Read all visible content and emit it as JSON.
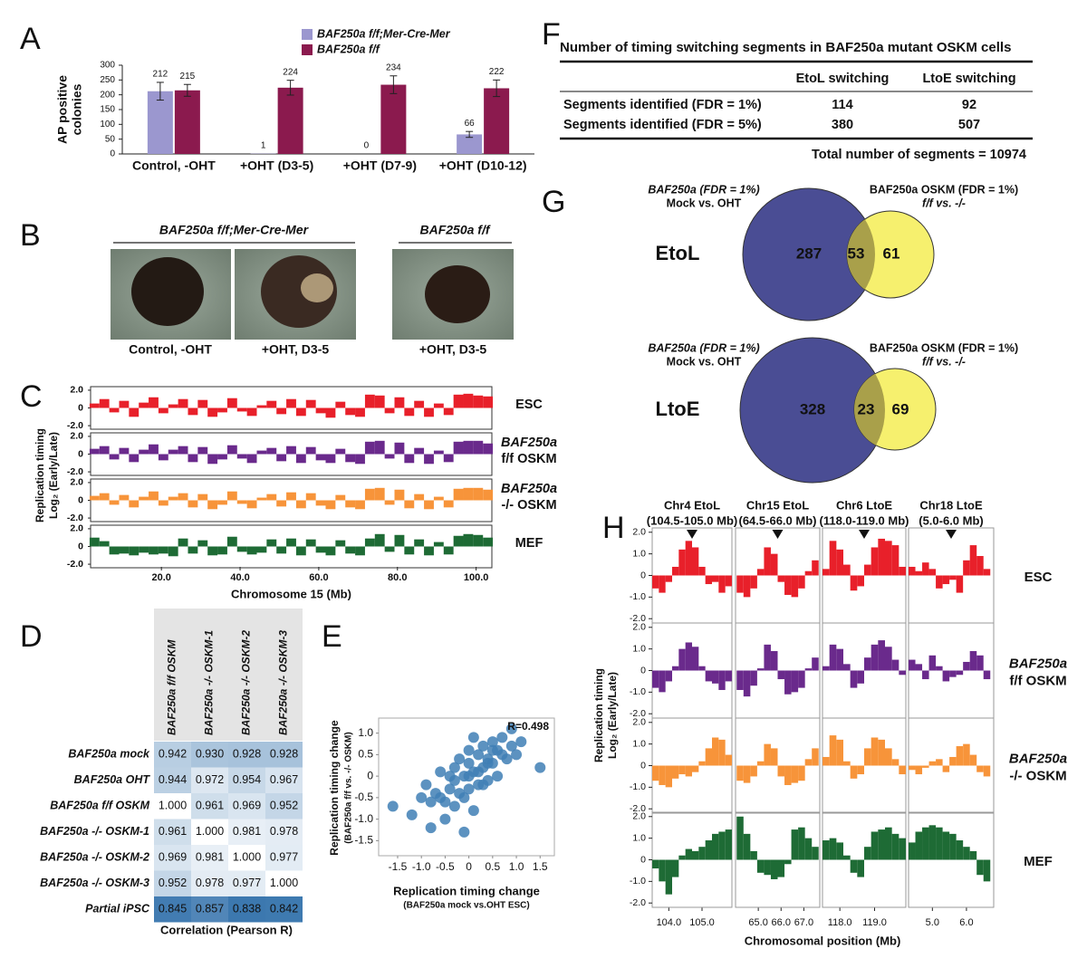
{
  "panel_labels": [
    "A",
    "B",
    "C",
    "D",
    "E",
    "F",
    "G",
    "H"
  ],
  "chart_data": [
    {
      "type": "bar",
      "ylabel": [
        "AP positive",
        "colonies"
      ],
      "categories": [
        "Control, -OHT",
        "+OHT (D3-5)",
        "+OHT (D7-9)",
        "+OHT (D10-12)"
      ],
      "series": [
        {
          "name": "BAF250a f/f;Mer-Cre-Mer",
          "color": "#9b97cf",
          "values": [
            212,
            1,
            0,
            66
          ],
          "errors": [
            30,
            0,
            0,
            10
          ]
        },
        {
          "name": "BAF250a f/f",
          "color": "#8b1a4e",
          "values": [
            215,
            224,
            234,
            222
          ],
          "errors": [
            20,
            25,
            30,
            28
          ]
        }
      ],
      "ylim": [
        0,
        300
      ],
      "yticks": [
        0,
        50,
        100,
        150,
        200,
        250,
        300
      ]
    },
    {
      "type": "track",
      "ylabel": [
        "Replication timing",
        "Log₂ (Early/Late)"
      ],
      "xlabel": "Chromosome 15 (Mb)",
      "xlim": [
        2,
        104
      ],
      "xticks": [
        {
          "value": 20,
          "label": "20.0"
        },
        {
          "value": 40,
          "label": "40.0"
        },
        {
          "value": 60,
          "label": "60.0"
        },
        {
          "value": 80,
          "label": "80.0"
        },
        {
          "value": 100,
          "label": "100.0"
        }
      ],
      "ylim": [
        -2.4,
        2.4
      ],
      "yticks": [
        {
          "value": 2,
          "label": "2.0"
        },
        0,
        {
          "value": -2,
          "label": "-2.0"
        }
      ],
      "x": [
        3,
        5.5,
        8,
        10.5,
        13,
        15.5,
        18,
        20.5,
        23,
        25.5,
        28,
        30.5,
        33,
        35.5,
        38,
        40.5,
        43,
        45.5,
        48,
        50.5,
        53,
        55.5,
        58,
        60.5,
        63,
        65.5,
        68,
        70.5,
        73,
        75.5,
        78,
        80.5,
        83,
        85.5,
        88,
        90.5,
        93,
        95.5,
        98,
        100.5,
        103
      ],
      "series": [
        {
          "name": [
            "ESC"
          ],
          "color": "#e8202a",
          "values": [
            0.5,
            1.0,
            -0.5,
            0.8,
            -1.0,
            0.6,
            1.2,
            -0.6,
            0.4,
            1.0,
            -0.8,
            0.9,
            -1.0,
            -0.5,
            1.1,
            -0.4,
            -0.9,
            0.3,
            0.8,
            -0.7,
            1.0,
            -0.9,
            0.9,
            -0.6,
            -1.1,
            0.7,
            -0.8,
            -1.0,
            1.5,
            1.4,
            -0.6,
            1.2,
            -0.9,
            0.8,
            -1.0,
            0.5,
            -0.8,
            1.5,
            1.6,
            1.4,
            1.3
          ]
        },
        {
          "name": [
            "BAF250a",
            "f/f OSKM"
          ],
          "color": "#6a2a8c",
          "values": [
            0.6,
            0.9,
            -0.6,
            0.7,
            -0.9,
            0.5,
            1.1,
            -0.7,
            0.5,
            0.9,
            -0.9,
            0.8,
            -1.1,
            -0.6,
            1.0,
            -0.5,
            -1.0,
            0.4,
            0.7,
            -0.8,
            0.9,
            -1.0,
            0.8,
            -0.7,
            -1.0,
            0.6,
            -0.9,
            -1.1,
            1.4,
            1.5,
            -0.5,
            1.3,
            -1.0,
            0.7,
            -1.1,
            0.4,
            -0.9,
            1.4,
            1.5,
            1.5,
            1.2
          ]
        },
        {
          "name": [
            "BAF250a",
            "-/- OSKM"
          ],
          "color": "#f7943a",
          "values": [
            0.5,
            0.8,
            -0.5,
            0.6,
            -0.8,
            0.4,
            1.0,
            -0.6,
            0.4,
            0.8,
            -0.8,
            0.7,
            -1.0,
            -0.5,
            1.0,
            -0.4,
            -0.9,
            0.3,
            0.7,
            -0.7,
            0.9,
            -0.9,
            0.8,
            -0.6,
            -1.0,
            0.6,
            -0.8,
            -1.0,
            1.3,
            1.4,
            -0.5,
            1.2,
            -0.9,
            0.7,
            -1.0,
            0.4,
            -0.8,
            1.3,
            1.4,
            1.4,
            1.2
          ]
        },
        {
          "name": [
            "MEF"
          ],
          "color": "#1e6b35",
          "values": [
            1.0,
            0.6,
            -0.9,
            -0.8,
            -1.0,
            -0.7,
            -0.9,
            -0.8,
            -1.1,
            0.9,
            -0.8,
            0.7,
            -1.0,
            -0.9,
            1.1,
            -0.6,
            -0.9,
            -0.7,
            0.8,
            -0.8,
            0.9,
            -1.0,
            0.8,
            -0.7,
            -1.0,
            0.7,
            -0.8,
            -1.0,
            0.9,
            1.4,
            -0.6,
            1.3,
            -0.9,
            0.8,
            -1.0,
            0.5,
            -0.9,
            1.2,
            1.4,
            1.3,
            1.0
          ]
        }
      ]
    },
    {
      "type": "scatter",
      "ylabel": [
        "Replication timing change",
        "(BAF250a f/f vs. -/- OSKM)"
      ],
      "xlabel": [
        "Replication timing change",
        "(BAF250a mock vs.OHT ESC)"
      ],
      "annotation": "R=0.498",
      "color": "#3f7fb5",
      "xlim": [
        -1.9,
        1.8
      ],
      "ylim": [
        -1.85,
        1.35
      ],
      "xticks": [
        {
          "value": -1.5,
          "label": "-1.5"
        },
        {
          "value": -1,
          "label": "-1.0"
        },
        {
          "value": -0.5,
          "label": "-0.5"
        },
        0,
        {
          "value": 0.5,
          "label": "0.5"
        },
        {
          "value": 1,
          "label": "1.0"
        },
        {
          "value": 1.5,
          "label": "1.5"
        }
      ],
      "yticks": [
        {
          "value": 1,
          "label": "1.0"
        },
        {
          "value": 0.5,
          "label": "0.5"
        },
        0,
        {
          "value": -0.5,
          "label": "-0.5"
        },
        {
          "value": -1,
          "label": "-1.0"
        },
        {
          "value": -1.5,
          "label": "-1.5"
        }
      ],
      "x": [
        -1.6,
        -1.2,
        -1.0,
        -0.9,
        -0.8,
        -0.7,
        -0.6,
        -0.5,
        -0.5,
        -0.4,
        -0.3,
        -0.3,
        -0.2,
        -0.2,
        -0.1,
        -0.1,
        0,
        0,
        0,
        0.1,
        0.1,
        0.2,
        0.2,
        0.3,
        0.3,
        0.4,
        0.4,
        0.5,
        0.5,
        0.6,
        0.6,
        0.7,
        0.8,
        0.9,
        1.0,
        1.1,
        1.5,
        -0.6,
        -0.3,
        0.0,
        0.2,
        0.4,
        0.7,
        -0.8,
        0.3,
        -0.1,
        0.5,
        0.9,
        -0.4,
        0.1
      ],
      "y": [
        -0.7,
        -0.9,
        -0.5,
        -0.2,
        -1.2,
        -0.4,
        0.1,
        -0.6,
        -1.0,
        -0.3,
        0.2,
        -0.7,
        -0.4,
        0.4,
        0.0,
        -1.3,
        0.3,
        -0.3,
        0.6,
        0.1,
        -0.8,
        0.5,
        -0.2,
        0.2,
        0.7,
        0.4,
        -0.1,
        0.3,
        0.8,
        0.6,
        0.0,
        0.9,
        0.4,
        0.7,
        0.5,
        0.8,
        0.2,
        -0.5,
        -0.1,
        0.0,
        0.1,
        0.3,
        0.5,
        -0.6,
        -0.2,
        -0.5,
        0.6,
        1.1,
        0.0,
        0.9
      ]
    },
    {
      "type": "track-regions",
      "ylabel": [
        "Replication timing",
        "Log₂ (Early/Late)"
      ],
      "xlabel": "Chromosomal position (Mb)",
      "ylim": [
        -2.2,
        2.2
      ],
      "yticks": [
        {
          "value": 2,
          "label": "2.0"
        },
        {
          "value": 1,
          "label": "1.0"
        },
        0,
        {
          "value": -1,
          "label": "-1.0"
        },
        {
          "value": -2,
          "label": "-2.0"
        }
      ],
      "regions": [
        {
          "title": [
            "Chr4 EtoL",
            "(104.5-105.0 Mb)"
          ],
          "xlim": [
            103.5,
            105.9
          ],
          "xticks": [
            {
              "value": 104,
              "label": "104.0"
            },
            {
              "value": 105,
              "label": "105.0"
            }
          ],
          "x": [
            103.6,
            103.8,
            104.0,
            104.2,
            104.4,
            104.6,
            104.8,
            105.0,
            105.2,
            105.4,
            105.6,
            105.8
          ]
        },
        {
          "title": [
            "Chr15 EtoL",
            "(64.5-66.0 Mb)"
          ],
          "xlim": [
            64.0,
            67.7
          ],
          "xticks": [
            {
              "value": 65,
              "label": "65.0"
            },
            {
              "value": 66,
              "label": "66.0"
            },
            {
              "value": 67,
              "label": "67.0"
            }
          ],
          "x": [
            64.2,
            64.5,
            64.8,
            65.1,
            65.4,
            65.7,
            66.0,
            66.3,
            66.6,
            66.9,
            67.2,
            67.5
          ]
        },
        {
          "title": [
            "Chr6 LtoE",
            "(118.0-119.0 Mb)"
          ],
          "xlim": [
            117.5,
            119.9
          ],
          "xticks": [
            {
              "value": 118,
              "label": "118.0"
            },
            {
              "value": 119,
              "label": "119.0"
            }
          ],
          "x": [
            117.6,
            117.8,
            118.0,
            118.2,
            118.4,
            118.6,
            118.8,
            119.0,
            119.2,
            119.4,
            119.6,
            119.8
          ]
        },
        {
          "title": [
            "Chr18 LtoE",
            "(5.0-6.0 Mb)"
          ],
          "xlim": [
            4.3,
            6.8
          ],
          "xticks": [
            {
              "value": 5,
              "label": "5.0"
            },
            {
              "value": 6,
              "label": "6.0"
            }
          ],
          "x": [
            4.4,
            4.6,
            4.8,
            5.0,
            5.2,
            5.4,
            5.6,
            5.8,
            6.0,
            6.2,
            6.4,
            6.6
          ]
        }
      ],
      "series": [
        {
          "name": [
            "ESC"
          ],
          "color": "#e8202a",
          "values": [
            [
              -0.6,
              -0.8,
              -0.3,
              0.4,
              1.2,
              1.6,
              1.3,
              0.4,
              -0.4,
              -0.3,
              -0.8,
              -0.5
            ],
            [
              -0.8,
              -1.0,
              -0.6,
              0.3,
              1.3,
              1.0,
              -0.3,
              -0.9,
              -1.0,
              -0.6,
              0.2,
              0.7
            ],
            [
              0.3,
              1.6,
              1.2,
              0.5,
              -0.7,
              -0.5,
              0.5,
              1.3,
              1.7,
              1.6,
              1.4,
              0.4
            ],
            [
              0.4,
              0.2,
              0.6,
              0.3,
              -0.6,
              -0.4,
              -0.2,
              -0.8,
              0.7,
              1.4,
              0.9,
              0.3
            ]
          ]
        },
        {
          "name": [
            "BAF250a",
            "f/f OSKM"
          ],
          "color": "#6a2a8c",
          "values": [
            [
              -0.8,
              -1.0,
              -0.5,
              0.2,
              1.0,
              1.3,
              1.1,
              0.2,
              -0.5,
              -0.6,
              -0.9,
              -0.5
            ],
            [
              -0.9,
              -1.2,
              -0.7,
              0.1,
              1.2,
              0.9,
              -0.4,
              -1.1,
              -1.0,
              -0.8,
              0.1,
              0.6
            ],
            [
              0.2,
              1.2,
              1.0,
              0.3,
              -0.8,
              -0.6,
              0.6,
              1.2,
              1.4,
              1.1,
              0.5,
              -0.2
            ],
            [
              0.5,
              0.3,
              -0.4,
              0.7,
              0.2,
              -0.5,
              -0.3,
              -0.2,
              0.4,
              0.9,
              0.7,
              -0.4
            ]
          ]
        },
        {
          "name": [
            "BAF250a",
            "-/- OSKM"
          ],
          "color": "#f7943a",
          "values": [
            [
              -0.7,
              -0.9,
              -1.0,
              -0.6,
              -0.4,
              -0.5,
              -0.3,
              0.2,
              0.8,
              1.3,
              1.2,
              0.5
            ],
            [
              -0.7,
              -0.8,
              -0.5,
              0.2,
              1.0,
              0.8,
              -0.5,
              -0.9,
              -0.8,
              -0.7,
              0.3,
              0.8
            ],
            [
              0.4,
              1.4,
              1.2,
              0.2,
              -0.6,
              -0.4,
              0.8,
              1.3,
              1.2,
              0.8,
              0.3,
              -0.4
            ],
            [
              -0.2,
              -0.4,
              -0.1,
              0.2,
              0.3,
              -0.3,
              0.4,
              0.9,
              1.0,
              0.5,
              -0.3,
              -0.5
            ]
          ]
        },
        {
          "name": [
            "MEF"
          ],
          "color": "#1e6b35",
          "values": [
            [
              -0.4,
              -1.0,
              -1.6,
              -0.8,
              0.2,
              0.5,
              0.4,
              0.6,
              0.9,
              1.2,
              1.3,
              1.4
            ],
            [
              2.0,
              1.2,
              0.4,
              -0.6,
              -0.7,
              -0.9,
              -0.8,
              -0.2,
              1.4,
              1.5,
              1.0,
              0.6
            ],
            [
              0.9,
              1.0,
              0.8,
              0.2,
              -0.6,
              -0.8,
              0.6,
              1.3,
              1.4,
              1.5,
              1.2,
              1.0
            ],
            [
              0.8,
              1.3,
              1.5,
              1.6,
              1.5,
              1.3,
              1.2,
              0.9,
              0.6,
              0.4,
              -0.7,
              -1.0
            ]
          ]
        }
      ]
    }
  ],
  "photos_b": {
    "headers": [
      "BAF250a f/f;Mer-Cre-Mer",
      "BAF250a f/f"
    ],
    "captions": [
      "Control, -OHT",
      "+OHT, D3-5",
      "+OHT, D3-5"
    ]
  },
  "table_d": {
    "columns": [
      "BAF250a f/f OSKM",
      "BAF250a -/- OSKM-1",
      "BAF250a -/- OSKM-2",
      "BAF250a -/- OSKM-3"
    ],
    "rows": [
      {
        "label": "BAF250a mock",
        "cells": [
          "0.942",
          "0.930",
          "0.928",
          "0.928"
        ]
      },
      {
        "label": "BAF250a OHT",
        "cells": [
          "0.944",
          "0.972",
          "0.954",
          "0.967"
        ]
      },
      {
        "label": "BAF250a f/f OSKM",
        "cells": [
          "1.000",
          "0.961",
          "0.969",
          "0.952"
        ]
      },
      {
        "label": "BAF250a -/- OSKM-1",
        "cells": [
          "0.961",
          "1.000",
          "0.981",
          "0.978"
        ]
      },
      {
        "label": "BAF250a -/- OSKM-2",
        "cells": [
          "0.969",
          "0.981",
          "1.000",
          "0.977"
        ]
      },
      {
        "label": "BAF250a -/- OSKM-3",
        "cells": [
          "0.952",
          "0.978",
          "0.977",
          "1.000"
        ]
      },
      {
        "label": "Partial iPSC",
        "cells": [
          "0.845",
          "0.857",
          "0.838",
          "0.842"
        ]
      }
    ],
    "caption": "Correlation (Pearson R)"
  },
  "table_f": {
    "title": "Number of timing switching segments in BAF250a mutant OSKM cells",
    "columns": [
      "EtoL switching",
      "LtoE switching"
    ],
    "rows": [
      [
        "Segments identified (FDR = 1%)",
        "114",
        "92"
      ],
      [
        "Segments identified (FDR = 5%)",
        "380",
        "507"
      ]
    ],
    "footer": "Total number of segments = 10974"
  },
  "venn_g": [
    {
      "label": "EtoL",
      "left": [
        "BAF250a (FDR = 1%)",
        "Mock vs. OHT"
      ],
      "right": [
        "BAF250a OSKM  (FDR = 1%)",
        "f/f vs. -/-"
      ],
      "left_only": "287",
      "both": "53",
      "right_only": "61"
    },
    {
      "label": "LtoE",
      "left": [
        "BAF250a (FDR = 1%)",
        "Mock vs. OHT"
      ],
      "right": [
        "BAF250a OSKM (FDR = 1%)",
        "f/f vs. -/-"
      ],
      "left_only": "328",
      "both": "23",
      "right_only": "69"
    }
  ]
}
